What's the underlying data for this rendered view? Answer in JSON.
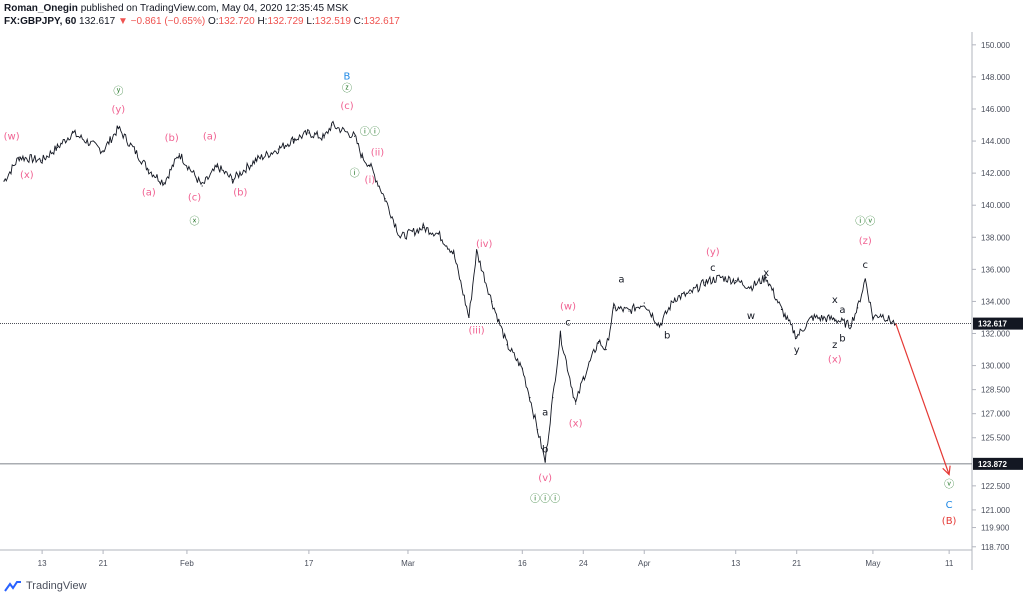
{
  "header": {
    "author": "Roman_Onegin",
    "published": "published on TradingView.com, May 04, 2020 12:35:45 MSK",
    "symbol": "FX:GBPJPY, 60",
    "last": "132.617",
    "change": "−0.861 (−0.65%)",
    "o_label": "O:",
    "o": "132.720",
    "h_label": "H:",
    "h": "132.729",
    "l_label": "L:",
    "l": "132.519",
    "c_label": "C:",
    "c": "132.617"
  },
  "footer": {
    "brand": "TradingView"
  },
  "colors": {
    "pink": "#f06292",
    "green": "#2e7d32",
    "blue": "#1e88e5",
    "black": "#131722",
    "red": "#e53935",
    "tagBg": "#131722"
  },
  "chart_data": {
    "type": "line",
    "series": [
      {
        "x": [
          "2020-01-08",
          "2020-01-10",
          "2020-01-13",
          "2020-01-15",
          "2020-01-17",
          "2020-01-21",
          "2020-01-23",
          "2020-01-27",
          "2020-01-29",
          "2020-01-31",
          "2020-02-03",
          "2020-02-05",
          "2020-02-07",
          "2020-02-10",
          "2020-02-13",
          "2020-02-15",
          "2020-02-17",
          "2020-02-19",
          "2020-02-20",
          "2020-02-23",
          "2020-02-24",
          "2020-02-25",
          "2020-02-27",
          "2020-02-29",
          "2020-03-03",
          "2020-03-05",
          "2020-03-07",
          "2020-03-09",
          "2020-03-10",
          "2020-03-12",
          "2020-03-14",
          "2020-03-16",
          "2020-03-17",
          "2020-03-18",
          "2020-03-19",
          "2020-03-20",
          "2020-03-21",
          "2020-03-23",
          "2020-03-24",
          "2020-03-26",
          "2020-03-27",
          "2020-03-28",
          "2020-03-30",
          "2020-04-01",
          "2020-04-03",
          "2020-04-05",
          "2020-04-07",
          "2020-04-09",
          "2020-04-11",
          "2020-04-13",
          "2020-04-15",
          "2020-04-17",
          "2020-04-19",
          "2020-04-21",
          "2020-04-23",
          "2020-04-26",
          "2020-04-28",
          "2020-04-29",
          "2020-04-30",
          "2020-05-01",
          "2020-05-02",
          "2020-05-04"
        ],
        "y": [
          141.5,
          143.0,
          142.8,
          143.6,
          144.5,
          143.4,
          144.8,
          142.2,
          141.4,
          143.2,
          141.2,
          142.4,
          141.6,
          142.8,
          143.5,
          144.1,
          144.5,
          144.2,
          145.0,
          144.3,
          143.0,
          142.5,
          140.4,
          138.0,
          138.6,
          138.2,
          137.0,
          133.0,
          137.1,
          134.0,
          131.3,
          129.8,
          128.0,
          126.0,
          124.0,
          128.0,
          131.9,
          127.6,
          129.2,
          131.5,
          131.0,
          133.6,
          133.4,
          133.9,
          132.5,
          134.2,
          134.5,
          135.2,
          135.5,
          135.3,
          134.9,
          135.5,
          133.5,
          131.8,
          133.0,
          132.9,
          132.5,
          133.6,
          135.4,
          133.0,
          133.2,
          132.6
        ]
      }
    ],
    "xlabel": "",
    "ylabel": "",
    "xticks": [
      {
        "label": "13",
        "date": "2020-01-13"
      },
      {
        "label": "21",
        "date": "2020-01-21"
      },
      {
        "label": "Feb",
        "date": "2020-02-01"
      },
      {
        "label": "17",
        "date": "2020-02-17"
      },
      {
        "label": "Mar",
        "date": "2020-03-01"
      },
      {
        "label": "16",
        "date": "2020-03-16"
      },
      {
        "label": "24",
        "date": "2020-03-24"
      },
      {
        "label": "Apr",
        "date": "2020-04-01"
      },
      {
        "label": "13",
        "date": "2020-04-13"
      },
      {
        "label": "21",
        "date": "2020-04-21"
      },
      {
        "label": "May",
        "date": "2020-05-01"
      },
      {
        "label": "11",
        "date": "2020-05-11"
      }
    ],
    "yticks": [
      {
        "label": "150.000",
        "value": 150.0
      },
      {
        "label": "148.000",
        "value": 148.0
      },
      {
        "label": "146.000",
        "value": 146.0
      },
      {
        "label": "144.000",
        "value": 144.0
      },
      {
        "label": "142.000",
        "value": 142.0
      },
      {
        "label": "140.000",
        "value": 140.0
      },
      {
        "label": "138.000",
        "value": 138.0
      },
      {
        "label": "136.000",
        "value": 136.0
      },
      {
        "label": "134.000",
        "value": 134.0
      },
      {
        "label": "132.000",
        "value": 132.0
      },
      {
        "label": "130.000",
        "value": 130.0
      },
      {
        "label": "128.500",
        "value": 128.5
      },
      {
        "label": "127.000",
        "value": 127.0
      },
      {
        "label": "125.500",
        "value": 125.5
      },
      {
        "label": "122.500",
        "value": 122.5
      },
      {
        "label": "121.000",
        "value": 121.0
      },
      {
        "label": "119.900",
        "value": 119.9
      },
      {
        "label": "118.700",
        "value": 118.7
      }
    ],
    "ylim": [
      118.5,
      150.8
    ],
    "xlim": [
      "2020-01-08",
      "2020-05-14"
    ],
    "price_lines": [
      {
        "label": "132.617",
        "value": 132.617,
        "style": "dotted"
      },
      {
        "label": "123.872",
        "value": 123.872,
        "style": "solid"
      }
    ],
    "projection": {
      "from": {
        "date": "2020-05-04",
        "value": 132.617
      },
      "to": {
        "date": "2020-05-11",
        "value": 123.2
      },
      "color": "red"
    },
    "grid": false,
    "legend": "none",
    "annotations": [
      {
        "text": "(w)",
        "date": "2020-01-09",
        "value": 144.3,
        "color": "pink"
      },
      {
        "text": "(x)",
        "date": "2020-01-11",
        "value": 141.9,
        "color": "pink"
      },
      {
        "text": "ⓨ",
        "date": "2020-01-23",
        "value": 147.1,
        "color": "green"
      },
      {
        "text": "(y)",
        "date": "2020-01-23",
        "value": 146.0,
        "color": "pink"
      },
      {
        "text": "(b)",
        "date": "2020-01-30",
        "value": 144.2,
        "color": "pink"
      },
      {
        "text": "(a)",
        "date": "2020-01-27",
        "value": 140.8,
        "color": "pink"
      },
      {
        "text": "(c)",
        "date": "2020-02-02",
        "value": 140.5,
        "color": "pink"
      },
      {
        "text": "ⓧ",
        "date": "2020-02-02",
        "value": 139.0,
        "color": "green"
      },
      {
        "text": "(a)",
        "date": "2020-02-04",
        "value": 144.3,
        "color": "pink"
      },
      {
        "text": "(b)",
        "date": "2020-02-08",
        "value": 140.8,
        "color": "pink"
      },
      {
        "text": "B",
        "date": "2020-02-22",
        "value": 148.1,
        "color": "blue"
      },
      {
        "text": "ⓩ",
        "date": "2020-02-22",
        "value": 147.3,
        "color": "green"
      },
      {
        "text": "(c)",
        "date": "2020-02-22",
        "value": 146.2,
        "color": "pink"
      },
      {
        "text": "ⓘ",
        "date": "2020-02-23",
        "value": 142.0,
        "color": "green"
      },
      {
        "text": "ⓘⓘ",
        "date": "2020-02-25",
        "value": 144.6,
        "color": "green"
      },
      {
        "text": "(ii)",
        "date": "2020-02-26",
        "value": 143.3,
        "color": "pink"
      },
      {
        "text": "(i)",
        "date": "2020-02-25",
        "value": 141.6,
        "color": "pink"
      },
      {
        "text": "(iv)",
        "date": "2020-03-11",
        "value": 137.6,
        "color": "pink"
      },
      {
        "text": "(iii)",
        "date": "2020-03-10",
        "value": 132.2,
        "color": "pink"
      },
      {
        "text": "(w)",
        "date": "2020-03-22",
        "value": 133.7,
        "color": "pink"
      },
      {
        "text": "c",
        "date": "2020-03-22",
        "value": 132.7,
        "color": "black"
      },
      {
        "text": "a",
        "date": "2020-03-19",
        "value": 127.1,
        "color": "black"
      },
      {
        "text": "b",
        "date": "2020-03-19",
        "value": 124.8,
        "color": "black"
      },
      {
        "text": "(x)",
        "date": "2020-03-23",
        "value": 126.4,
        "color": "pink"
      },
      {
        "text": "(v)",
        "date": "2020-03-19",
        "value": 123.0,
        "color": "pink"
      },
      {
        "text": "ⓘⓘⓘ",
        "date": "2020-03-19",
        "value": 121.7,
        "color": "green"
      },
      {
        "text": "a",
        "date": "2020-03-29",
        "value": 135.4,
        "color": "black"
      },
      {
        "text": "b",
        "date": "2020-04-04",
        "value": 131.9,
        "color": "black"
      },
      {
        "text": "(y)",
        "date": "2020-04-10",
        "value": 137.1,
        "color": "pink"
      },
      {
        "text": "c",
        "date": "2020-04-10",
        "value": 136.1,
        "color": "black"
      },
      {
        "text": "x",
        "date": "2020-04-17",
        "value": 135.8,
        "color": "black"
      },
      {
        "text": "w",
        "date": "2020-04-15",
        "value": 133.1,
        "color": "black"
      },
      {
        "text": "y",
        "date": "2020-04-21",
        "value": 131.0,
        "color": "black"
      },
      {
        "text": "x",
        "date": "2020-04-26",
        "value": 134.1,
        "color": "black"
      },
      {
        "text": "a",
        "date": "2020-04-27",
        "value": 133.5,
        "color": "black"
      },
      {
        "text": "b",
        "date": "2020-04-27",
        "value": 131.7,
        "color": "black"
      },
      {
        "text": "z",
        "date": "2020-04-26",
        "value": 131.3,
        "color": "black"
      },
      {
        "text": "(x)",
        "date": "2020-04-26",
        "value": 130.4,
        "color": "pink"
      },
      {
        "text": "ⓘⓥ",
        "date": "2020-04-30",
        "value": 139.0,
        "color": "green"
      },
      {
        "text": "(z)",
        "date": "2020-04-30",
        "value": 137.8,
        "color": "pink"
      },
      {
        "text": "c",
        "date": "2020-04-30",
        "value": 136.3,
        "color": "black"
      },
      {
        "text": "ⓥ",
        "date": "2020-05-11",
        "value": 122.6,
        "color": "green"
      },
      {
        "text": "C",
        "date": "2020-05-11",
        "value": 121.4,
        "color": "blue"
      },
      {
        "text": "(B)",
        "date": "2020-05-11",
        "value": 120.4,
        "color": "red"
      }
    ]
  }
}
